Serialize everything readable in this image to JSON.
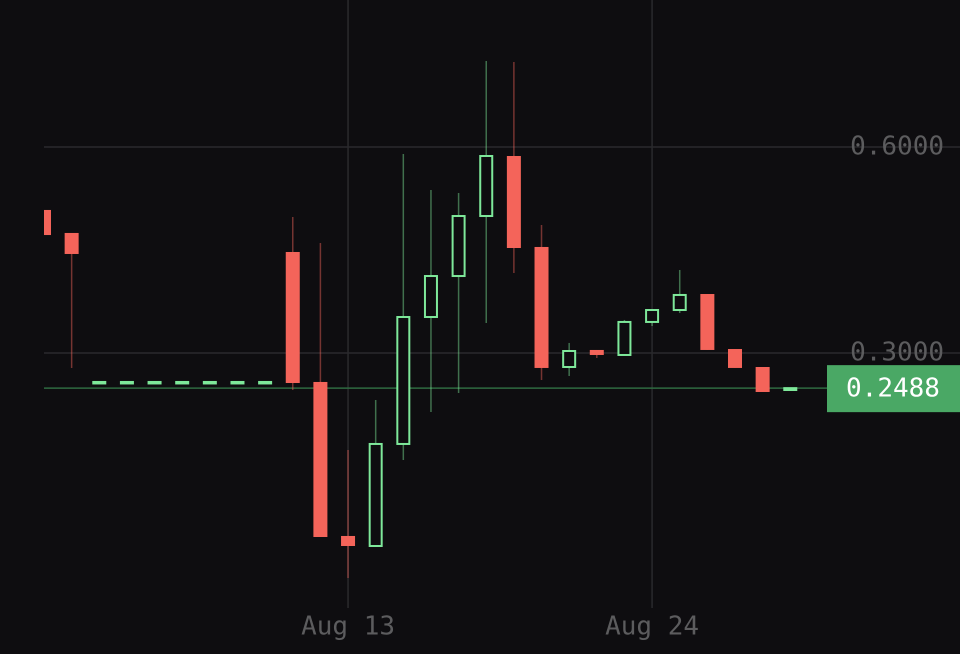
{
  "chart_data": {
    "type": "candlestick",
    "categories": [
      null,
      null,
      null,
      null,
      null,
      null,
      null,
      null,
      null,
      null,
      null,
      "Aug 13",
      null,
      null,
      null,
      null,
      null,
      null,
      null,
      null,
      null,
      null,
      "Aug 24",
      null,
      null,
      null,
      null,
      null
    ],
    "open": [
      0.5083,
      0.4748,
      0.2578,
      0.2578,
      0.2578,
      0.2578,
      0.2578,
      0.2578,
      0.2578,
      0.4471,
      0.2578,
      0.0335,
      0.0189,
      0.1675,
      0.3524,
      0.4121,
      0.4995,
      0.5869,
      0.4544,
      0.2796,
      0.3044,
      0.2971,
      0.3452,
      0.3626,
      0.3859,
      0.3058,
      0.2796,
      0.2461
    ],
    "high": [
      0.5083,
      0.4748,
      0.2578,
      0.2578,
      0.2578,
      0.2578,
      0.2578,
      0.2578,
      0.2578,
      0.4981,
      0.4602,
      0.1587,
      0.2316,
      0.5898,
      0.5374,
      0.533,
      0.7252,
      0.7238,
      0.4864,
      0.3146,
      0.3044,
      0.3481,
      0.3626,
      0.4209,
      0.3859,
      0.3058,
      0.2796,
      0.2488
    ],
    "low": [
      0.4718,
      0.2782,
      0.2578,
      0.2578,
      0.2578,
      0.2578,
      0.2578,
      0.2578,
      0.2578,
      0.2461,
      0.032,
      -0.0277,
      0.0189,
      0.1442,
      0.2141,
      0.2418,
      0.3437,
      0.4165,
      0.2607,
      0.2665,
      0.2927,
      0.2971,
      0.3393,
      0.3582,
      0.3044,
      0.2782,
      0.2432,
      0.2461
    ],
    "close": [
      0.4718,
      0.4442,
      0.2578,
      0.2578,
      0.2578,
      0.2578,
      0.2578,
      0.2578,
      0.2578,
      0.2563,
      0.032,
      0.0189,
      0.1675,
      0.3524,
      0.4121,
      0.4995,
      0.5869,
      0.4529,
      0.2782,
      0.3029,
      0.2971,
      0.3452,
      0.3626,
      0.3845,
      0.3044,
      0.2782,
      0.2432,
      0.2488
    ],
    "up_color": "#7ee89a",
    "down_color": "#f4645a",
    "ylim": [
      -0.0714,
      0.8141
    ],
    "yticks": [
      {
        "value": 0.3,
        "label": "0.3000"
      },
      {
        "value": 0.6,
        "label": "0.6000"
      }
    ],
    "grid": true,
    "last_price": 0.2488,
    "last_price_color": "#4aa865"
  }
}
